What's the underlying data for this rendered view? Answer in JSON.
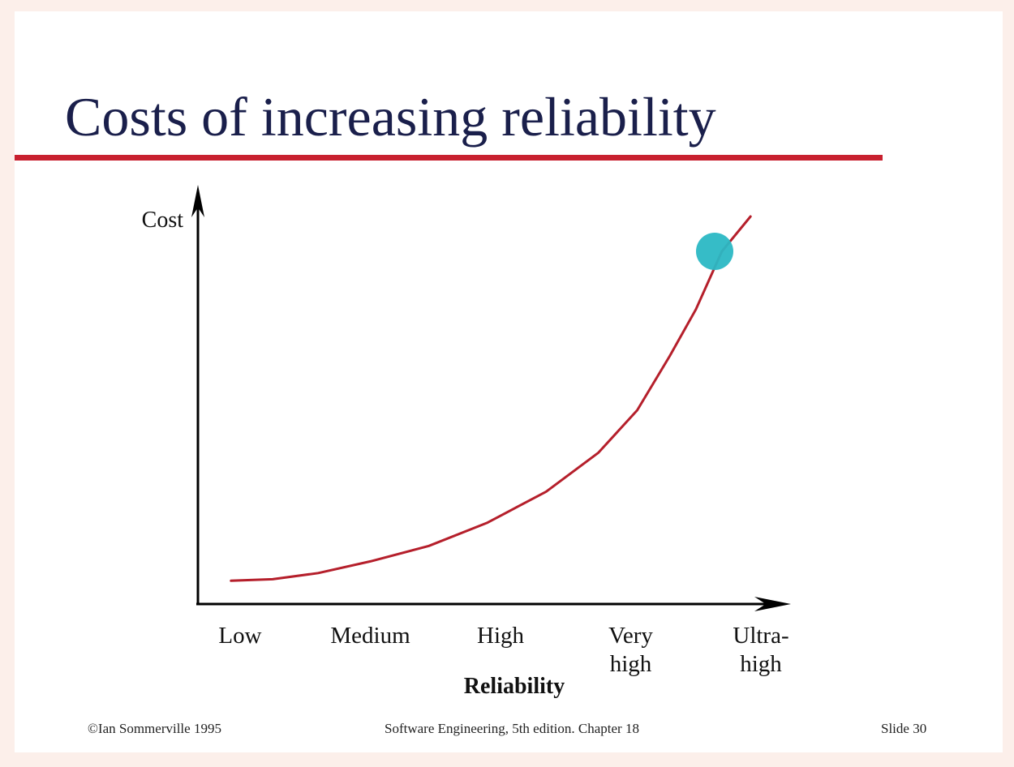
{
  "slide": {
    "title": "Costs of increasing reliability",
    "footer_left": "©Ian Sommerville 1995",
    "footer_center": "Software Engineering, 5th edition. Chapter 18",
    "footer_right": "Slide 30"
  },
  "colors": {
    "page_background": "#fcefea",
    "slide_background": "#ffffff",
    "title": "#1a1f4b",
    "title_rule": "#c8202f",
    "curve": "#b51f2b",
    "axis": "#000000",
    "pointer_dot": "#2bb8c4"
  },
  "chart_data": {
    "type": "line",
    "title": "",
    "xlabel": "Reliability",
    "ylabel": "Cost",
    "categories": [
      "Low",
      "Medium",
      "High",
      "Very high",
      "Ultra-high"
    ],
    "category_label_lines": [
      [
        "Low"
      ],
      [
        "Medium"
      ],
      [
        "High"
      ],
      [
        "Very",
        "high"
      ],
      [
        "Ultra-",
        "high"
      ]
    ],
    "x_range": [
      0,
      4
    ],
    "y_range": [
      0,
      100
    ],
    "y_ticks": false,
    "grid": false,
    "series": [
      {
        "values": [
          [
            -0.07,
            6
          ],
          [
            0.25,
            6.4
          ],
          [
            0.6,
            8
          ],
          [
            1.0,
            11
          ],
          [
            1.45,
            15
          ],
          [
            1.9,
            21
          ],
          [
            2.35,
            29
          ],
          [
            2.75,
            39
          ],
          [
            3.05,
            50
          ],
          [
            3.3,
            64
          ],
          [
            3.5,
            76
          ],
          [
            3.7,
            91
          ],
          [
            3.92,
            100
          ]
        ]
      }
    ]
  }
}
